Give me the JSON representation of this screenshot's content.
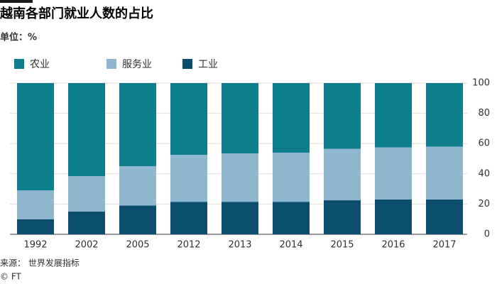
{
  "chart_data": {
    "type": "stacked_bar",
    "title": "越南各部门就业人数的占比",
    "subtitle": "单位：%",
    "source": "来源： 世界发展指标",
    "credit": "© FT",
    "categories": [
      "1992",
      "2002",
      "2005",
      "2012",
      "2013",
      "2014",
      "2015",
      "2016",
      "2017"
    ],
    "series": [
      {
        "name": "农业",
        "color": "#0e7d8c",
        "values": [
          71,
          61.5,
          55,
          47.5,
          46.5,
          46,
          43.5,
          42.5,
          42
        ]
      },
      {
        "name": "服务业",
        "color": "#8fb8d0",
        "values": [
          19,
          23.5,
          26,
          31,
          32,
          32.5,
          34,
          34.5,
          35
        ]
      },
      {
        "name": "工业",
        "color": "#0b4d6d",
        "values": [
          10,
          15,
          19,
          21.5,
          21.5,
          21.5,
          22.5,
          23,
          23
        ]
      }
    ],
    "ylim": [
      0,
      100
    ],
    "yticks": [
      0,
      20,
      40,
      60,
      80,
      100
    ],
    "grid": true
  }
}
